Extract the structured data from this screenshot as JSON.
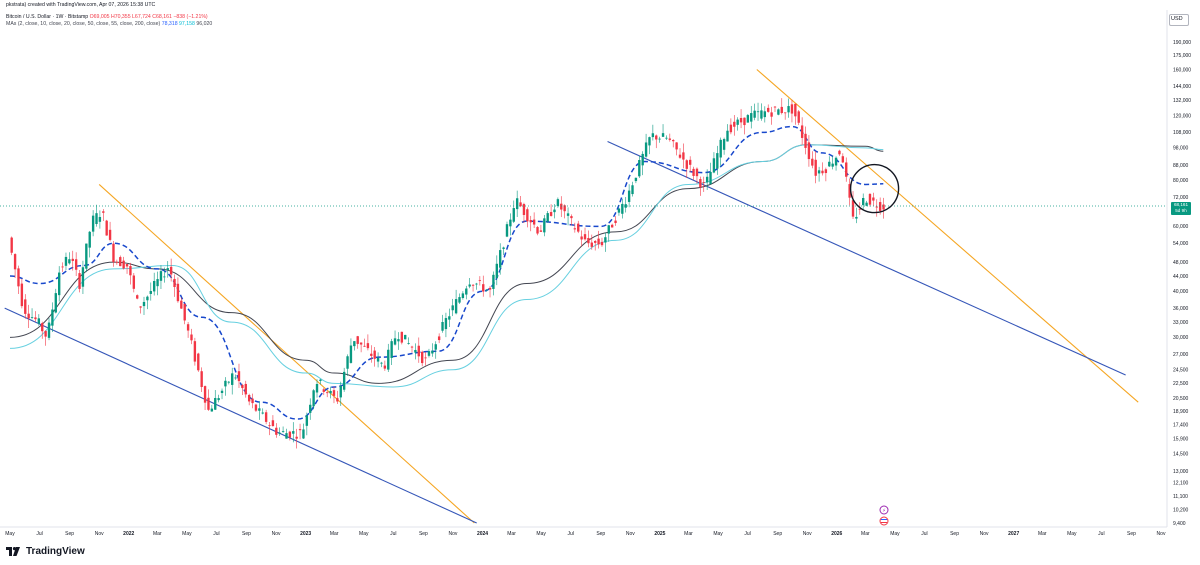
{
  "header": {
    "credit": "pkstrata) created with TradingView.com, Apr 07, 2026 15:38 UTC",
    "symbol_line": {
      "symbol": "Bitcoin / U.S. Dollar · 1W · Bitstamp",
      "open": "O69,005",
      "high": "H70,355",
      "low": "L67,724",
      "close": "C68,161",
      "change": "−838 (−1.21%)"
    },
    "ma_line": {
      "label": "MAs (2, close, 10, close, 20, close, 50, close, 55, close, 200, close)",
      "v1": "78,318",
      "v2": "97,158",
      "v3": "96,020"
    }
  },
  "price_axis": {
    "currency": "USD",
    "current_price": "68,161",
    "countdown": "5d 9h"
  },
  "logo": {
    "text": "TradingView"
  },
  "colors": {
    "up": "#089981",
    "down": "#f23645",
    "ma_black": "#434651",
    "ma_cyan": "#67d0e0",
    "ma_dashed_blue": "#1848cc",
    "trend_orange": "#f5a623",
    "trend_blue": "#3556b8"
  },
  "chart_data": {
    "type": "candlestick",
    "title": "Bitcoin / U.S. Dollar · 1W · Bitstamp",
    "y_scale": "log",
    "ylim": [
      9000,
      210000
    ],
    "y_ticks": [
      9400,
      10200,
      11100,
      12100,
      13000,
      14500,
      15900,
      17400,
      18900,
      20500,
      22500,
      24500,
      27000,
      30000,
      33000,
      36000,
      40000,
      44000,
      48000,
      54000,
      60000,
      66000,
      72000,
      80000,
      88000,
      98000,
      108000,
      120000,
      132000,
      144000,
      160000,
      175000,
      190000
    ],
    "x_ticks": [
      {
        "label": "May",
        "date": "2021-05-01"
      },
      {
        "label": "Jul",
        "date": "2021-07-01"
      },
      {
        "label": "Sep",
        "date": "2021-09-01"
      },
      {
        "label": "Nov",
        "date": "2021-11-01"
      },
      {
        "label": "2022",
        "date": "2022-01-01"
      },
      {
        "label": "Mar",
        "date": "2022-03-01"
      },
      {
        "label": "May",
        "date": "2022-05-01"
      },
      {
        "label": "Jul",
        "date": "2022-07-01"
      },
      {
        "label": "Sep",
        "date": "2022-09-01"
      },
      {
        "label": "Nov",
        "date": "2022-11-01"
      },
      {
        "label": "2023",
        "date": "2023-01-01"
      },
      {
        "label": "Mar",
        "date": "2023-03-01"
      },
      {
        "label": "May",
        "date": "2023-05-01"
      },
      {
        "label": "Jul",
        "date": "2023-07-01"
      },
      {
        "label": "Sep",
        "date": "2023-09-01"
      },
      {
        "label": "Nov",
        "date": "2023-11-01"
      },
      {
        "label": "2024",
        "date": "2024-01-01"
      },
      {
        "label": "Mar",
        "date": "2024-03-01"
      },
      {
        "label": "May",
        "date": "2024-05-01"
      },
      {
        "label": "Jul",
        "date": "2024-07-01"
      },
      {
        "label": "Sep",
        "date": "2024-09-01"
      },
      {
        "label": "Nov",
        "date": "2024-11-01"
      },
      {
        "label": "2025",
        "date": "2025-01-01"
      },
      {
        "label": "Mar",
        "date": "2025-03-01"
      },
      {
        "label": "May",
        "date": "2025-05-01"
      },
      {
        "label": "Jul",
        "date": "2025-07-01"
      },
      {
        "label": "Sep",
        "date": "2025-09-01"
      },
      {
        "label": "Nov",
        "date": "2025-11-01"
      },
      {
        "label": "2026",
        "date": "2026-01-01"
      },
      {
        "label": "Mar",
        "date": "2026-03-01"
      },
      {
        "label": "May",
        "date": "2026-05-01"
      },
      {
        "label": "Jul",
        "date": "2026-07-01"
      },
      {
        "label": "Sep",
        "date": "2026-09-01"
      },
      {
        "label": "Nov",
        "date": "2026-11-01"
      },
      {
        "label": "2027",
        "date": "2027-01-01"
      },
      {
        "label": "Mar",
        "date": "2027-03-01"
      },
      {
        "label": "May",
        "date": "2027-05-01"
      },
      {
        "label": "Jul",
        "date": "2027-07-01"
      },
      {
        "label": "Sep",
        "date": "2027-09-01"
      },
      {
        "label": "Nov",
        "date": "2027-11-01"
      }
    ],
    "price_path": [
      [
        "2021-05-01",
        56000
      ],
      [
        "2021-06-01",
        36000
      ],
      [
        "2021-07-01",
        33000
      ],
      [
        "2021-07-20",
        30000
      ],
      [
        "2021-08-15",
        46000
      ],
      [
        "2021-09-05",
        50000
      ],
      [
        "2021-09-25",
        42000
      ],
      [
        "2021-10-20",
        62000
      ],
      [
        "2021-11-10",
        66000
      ],
      [
        "2021-12-05",
        49000
      ],
      [
        "2022-01-01",
        47000
      ],
      [
        "2022-01-25",
        36000
      ],
      [
        "2022-03-28",
        47000
      ],
      [
        "2022-05-10",
        30000
      ],
      [
        "2022-06-18",
        19000
      ],
      [
        "2022-08-10",
        24000
      ],
      [
        "2022-09-10",
        20000
      ],
      [
        "2022-11-09",
        16500
      ],
      [
        "2022-12-28",
        16500
      ],
      [
        "2023-01-25",
        23000
      ],
      [
        "2023-03-10",
        20200
      ],
      [
        "2023-04-12",
        30000
      ],
      [
        "2023-06-15",
        25000
      ],
      [
        "2023-07-12",
        31000
      ],
      [
        "2023-09-10",
        25800
      ],
      [
        "2023-10-24",
        34000
      ],
      [
        "2023-12-08",
        43000
      ],
      [
        "2024-01-20",
        40000
      ],
      [
        "2024-03-12",
        71000
      ],
      [
        "2024-05-01",
        58000
      ],
      [
        "2024-06-05",
        70000
      ],
      [
        "2024-08-05",
        54000
      ],
      [
        "2024-09-06",
        54000
      ],
      [
        "2024-10-28",
        72000
      ],
      [
        "2024-12-17",
        106000
      ],
      [
        "2025-01-20",
        104000
      ],
      [
        "2025-04-07",
        76500
      ],
      [
        "2025-05-22",
        110000
      ],
      [
        "2025-07-14",
        120000
      ],
      [
        "2025-08-14",
        123000
      ],
      [
        "2025-10-06",
        125000
      ],
      [
        "2025-11-21",
        84000
      ],
      [
        "2025-12-15",
        87000
      ],
      [
        "2026-01-14",
        97000
      ],
      [
        "2026-02-06",
        62000
      ],
      [
        "2026-03-04",
        72000
      ],
      [
        "2026-03-18",
        70000
      ],
      [
        "2026-04-07",
        68161
      ]
    ],
    "moving_averages": [
      {
        "name": "MA (black)",
        "style": "solid",
        "color": "#434651",
        "points": [
          [
            "2021-05-01",
            30000
          ],
          [
            "2021-12-01",
            48000
          ],
          [
            "2022-03-01",
            46000
          ],
          [
            "2022-08-01",
            35000
          ],
          [
            "2023-01-01",
            26000
          ],
          [
            "2023-03-01",
            24000
          ],
          [
            "2023-06-01",
            22500
          ],
          [
            "2023-11-01",
            26000
          ],
          [
            "2024-04-01",
            42000
          ],
          [
            "2024-10-01",
            58000
          ],
          [
            "2025-03-01",
            76000
          ],
          [
            "2025-08-01",
            90000
          ],
          [
            "2025-11-01",
            100000
          ],
          [
            "2026-03-01",
            99000
          ],
          [
            "2026-04-07",
            96000
          ]
        ]
      },
      {
        "name": "MA (cyan)",
        "style": "solid",
        "color": "#67d0e0",
        "points": [
          [
            "2021-05-01",
            28000
          ],
          [
            "2021-12-01",
            46000
          ],
          [
            "2022-04-01",
            47000
          ],
          [
            "2022-08-01",
            33000
          ],
          [
            "2023-01-01",
            24000
          ],
          [
            "2023-03-01",
            22500
          ],
          [
            "2023-07-01",
            22000
          ],
          [
            "2023-11-01",
            24500
          ],
          [
            "2024-04-01",
            38000
          ],
          [
            "2024-10-01",
            55000
          ],
          [
            "2025-03-01",
            78000
          ],
          [
            "2025-08-01",
            90000
          ],
          [
            "2025-11-01",
            100000
          ],
          [
            "2026-03-01",
            98000
          ],
          [
            "2026-04-07",
            97000
          ]
        ]
      },
      {
        "name": "MA (dashed blue)",
        "style": "dashed",
        "color": "#1848cc",
        "points": [
          [
            "2021-05-01",
            44000
          ],
          [
            "2021-07-01",
            42000
          ],
          [
            "2021-10-01",
            47000
          ],
          [
            "2021-12-01",
            54000
          ],
          [
            "2022-03-01",
            46000
          ],
          [
            "2022-06-01",
            34000
          ],
          [
            "2022-10-01",
            20000
          ],
          [
            "2022-12-15",
            18000
          ],
          [
            "2023-03-01",
            22000
          ],
          [
            "2023-06-01",
            26500
          ],
          [
            "2023-10-01",
            27500
          ],
          [
            "2024-01-01",
            40000
          ],
          [
            "2024-04-01",
            62000
          ],
          [
            "2024-09-01",
            60000
          ],
          [
            "2024-12-01",
            90000
          ],
          [
            "2025-04-01",
            84000
          ],
          [
            "2025-08-01",
            108000
          ],
          [
            "2025-10-01",
            112000
          ],
          [
            "2025-12-01",
            95000
          ],
          [
            "2026-03-01",
            78000
          ],
          [
            "2026-04-07",
            78318
          ]
        ]
      }
    ],
    "trendlines": [
      {
        "color": "#f5a623",
        "from": [
          "2021-11-01",
          78000
        ],
        "to": [
          "2023-12-15",
          9400
        ]
      },
      {
        "color": "#3556b8",
        "from": [
          "2021-04-20",
          36000
        ],
        "to": [
          "2023-12-20",
          9400
        ]
      },
      {
        "color": "#f5a623",
        "from": [
          "2025-07-20",
          160000
        ],
        "to": [
          "2027-09-15",
          20000
        ]
      },
      {
        "color": "#3556b8",
        "from": [
          "2024-09-15",
          102000
        ],
        "to": [
          "2027-08-20",
          23700
        ]
      }
    ],
    "annotations": [
      {
        "type": "circle",
        "center": [
          "2026-03-20",
          76000
        ]
      }
    ],
    "current_price": 68161
  }
}
